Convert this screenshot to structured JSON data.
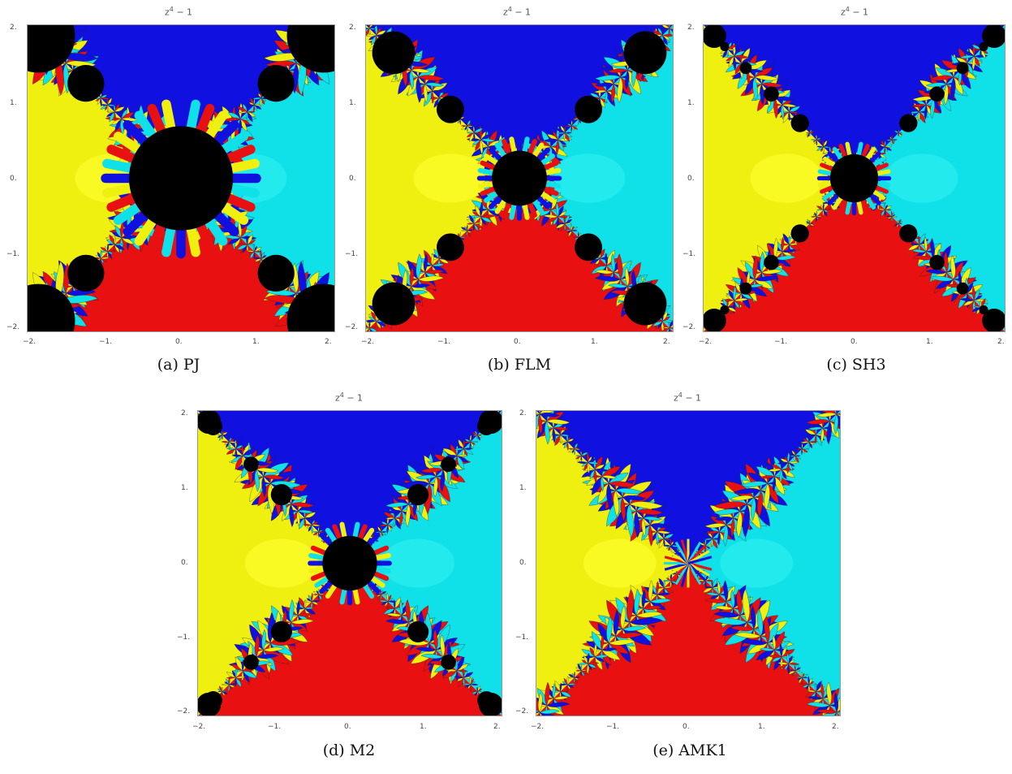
{
  "colors": {
    "root_top": "#1010e0",
    "root_right": "#10e0e8",
    "root_bottom": "#e81010",
    "root_left": "#f0f010",
    "nonconvergent": "#000000"
  },
  "panels": [
    {
      "title_base": "z",
      "title_exp": "4",
      "title_rest": " − 1",
      "caption": "(a) PJ",
      "xticks": [
        "−2.",
        "−1.",
        "0.",
        "1.",
        "2."
      ],
      "yticks": [
        "2.",
        "1.",
        "0.",
        "−1.",
        "−2."
      ]
    },
    {
      "title_base": "z",
      "title_exp": "4",
      "title_rest": " − 1",
      "caption": "(b) FLM",
      "xticks": [
        "−2.",
        "−1.",
        "0.",
        "1.",
        "2."
      ],
      "yticks": [
        "2.",
        "1.",
        "0.",
        "−1.",
        "−2."
      ]
    },
    {
      "title_base": "z",
      "title_exp": "4",
      "title_rest": " − 1",
      "caption": "(c) SH3",
      "xticks": [
        "−2.",
        "−1.",
        "0.",
        "1.",
        "2."
      ],
      "yticks": [
        "2.",
        "1.",
        "0.",
        "−1.",
        "−2."
      ]
    },
    {
      "title_base": "z",
      "title_exp": "4",
      "title_rest": " − 1",
      "caption": "(d) M2",
      "xticks": [
        "−2.",
        "−1.",
        "0.",
        "1.",
        "2."
      ],
      "yticks": [
        "2.",
        "1.",
        "0.",
        "−1.",
        "−2."
      ]
    },
    {
      "title_base": "z",
      "title_exp": "4",
      "title_rest": " − 1",
      "caption": "(e) AMK1",
      "xticks": [
        "−2.",
        "−1.",
        "0.",
        "1.",
        "2."
      ],
      "yticks": [
        "2.",
        "1.",
        "0.",
        "−1.",
        "−2."
      ]
    }
  ]
}
